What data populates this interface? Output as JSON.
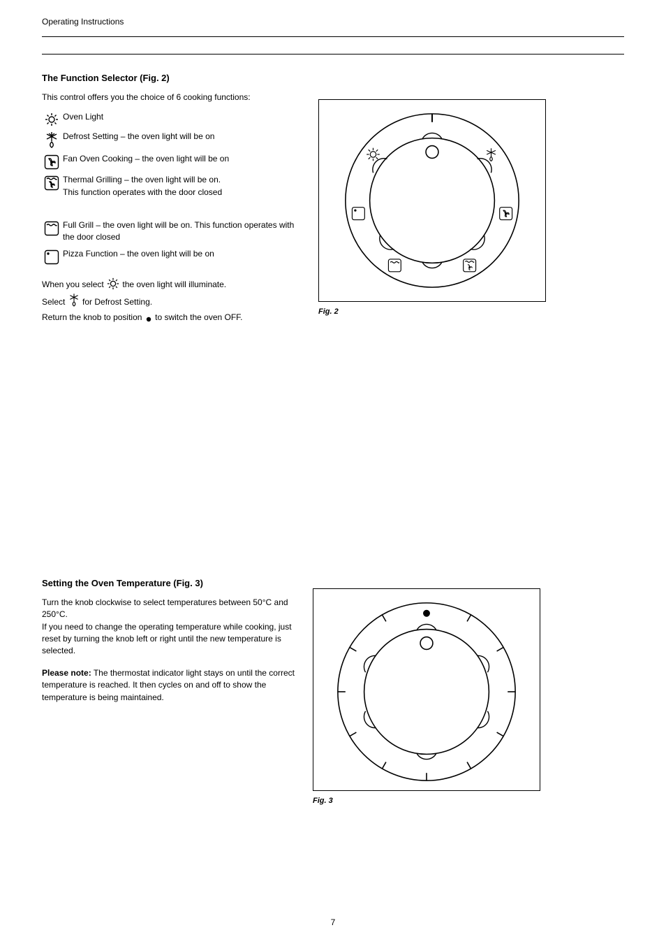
{
  "header": {
    "title": "Operating Instructions",
    "page_head": ""
  },
  "section1": {
    "title": "The Function Selector (Fig. 2)",
    "intro": "This control offers you the choice of 6 cooking functions:",
    "functions": [
      {
        "key": "oven-light",
        "label": "Oven Light",
        "extra": ""
      },
      {
        "key": "defrost",
        "label": "Defrost Setting",
        "extra": " – the oven light will be on"
      },
      {
        "key": "fan-oven",
        "label": "Fan Oven Cooking",
        "extra": " – the oven light will be on"
      },
      {
        "key": "thermal-grill",
        "label": "Thermal Grilling",
        "extra": " – the oven light will be on.\nThis function operates with the door closed"
      },
      {
        "key": "full-grill",
        "label": "Full Grill",
        "extra": " – the oven light will be on. This function operates with the door closed"
      },
      {
        "key": "pizza",
        "label": "Pizza Function",
        "extra": " – the oven light will be on"
      }
    ],
    "note_prefix": "When you select ",
    "note_mid": " the oven light will illuminate.",
    "note_line2_part1": "Select ",
    "note_line2_part2": " for Defrost Setting.",
    "note_line3": "Return the knob to position ",
    "note_line3b": " to switch the oven OFF."
  },
  "fig1": {
    "caption": "Fig. 2"
  },
  "section2": {
    "title": "Setting the Oven Temperature (Fig. 3)",
    "body": "Turn the knob clockwise to select temperatures between 50°C and 250°C.\nIf you need to change the operating temperature while cooking, just reset by turning the knob left or right until the new temperature is selected.",
    "note_title": "Please note:",
    "note_body": "The thermostat indicator light stays on until the correct temperature is reached. It then cycles on and off to show the temperature is being maintained."
  },
  "fig2": {
    "caption": "Fig. 3"
  },
  "footer": {
    "page": "7"
  },
  "style": {
    "icon_stroke": "#000000",
    "icon_strokew": 1.3,
    "dial_outer_r": 125,
    "dial_inner_r": 90,
    "fig2_temps": [
      "",
      "50",
      "100",
      "150",
      "200",
      "250"
    ]
  }
}
